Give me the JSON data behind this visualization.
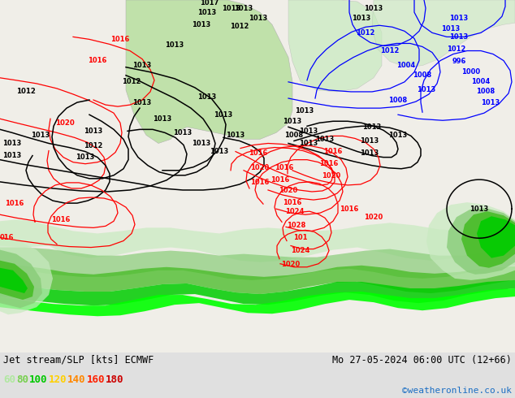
{
  "title_left": "Jet stream/SLP [kts] ECMWF",
  "title_right": "Mo 27-05-2024 06:00 UTC (12+66)",
  "credit": "©weatheronline.co.uk",
  "legend_values": [
    "60",
    "80",
    "100",
    "120",
    "140",
    "160",
    "180"
  ],
  "legend_colors": [
    "#b0e8a0",
    "#78d050",
    "#00c800",
    "#ffd000",
    "#ff8800",
    "#ff2000",
    "#cc0000"
  ],
  "bg_color": "#e0e0e0",
  "map_bg": "#f0f0f0",
  "ocean_color": "#e8e8f0",
  "africa_green": "#b8dfa0",
  "jet_light": "#c8eac0",
  "jet_mid": "#88cc78",
  "jet_dark": "#44bb22",
  "jet_bright": "#00cc00",
  "label_fontsize": 8,
  "credit_color": "#1a6ec4",
  "title_fontsize": 8.5
}
